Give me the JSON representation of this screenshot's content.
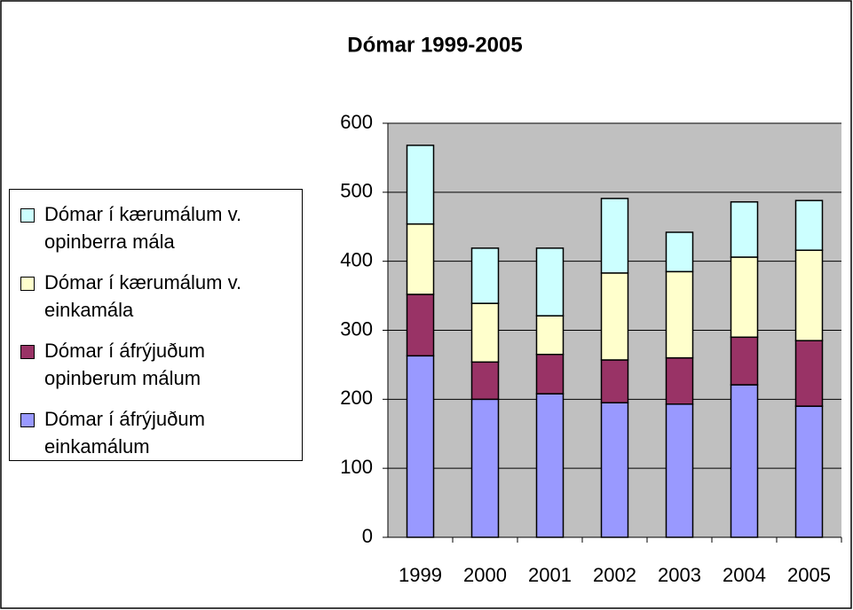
{
  "chart_data": {
    "type": "stacked_bar",
    "title": "Dómar 1999-2005",
    "categories": [
      "1999",
      "2000",
      "2001",
      "2002",
      "2003",
      "2004",
      "2005"
    ],
    "series": [
      {
        "name": "Dómar í áfrýjuðum einkamálum",
        "color": "#9999ff",
        "values": [
          263,
          200,
          208,
          195,
          193,
          221,
          190
        ]
      },
      {
        "name": "Dómar í áfrýjuðum opinberum málum",
        "color": "#993366",
        "values": [
          89,
          54,
          57,
          62,
          67,
          69,
          95
        ]
      },
      {
        "name": "Dómar í kærumálum v. einkamála",
        "color": "#ffffcc",
        "values": [
          102,
          85,
          56,
          126,
          125,
          116,
          131
        ]
      },
      {
        "name": "Dómar í kærumálum v. opinberra mála",
        "color": "#ccffff",
        "values": [
          114,
          80,
          98,
          108,
          57,
          80,
          72
        ]
      }
    ],
    "ylim": [
      0,
      600
    ],
    "yticks": [
      0,
      100,
      200,
      300,
      400,
      500,
      600
    ],
    "grid": true,
    "legend": "left"
  }
}
